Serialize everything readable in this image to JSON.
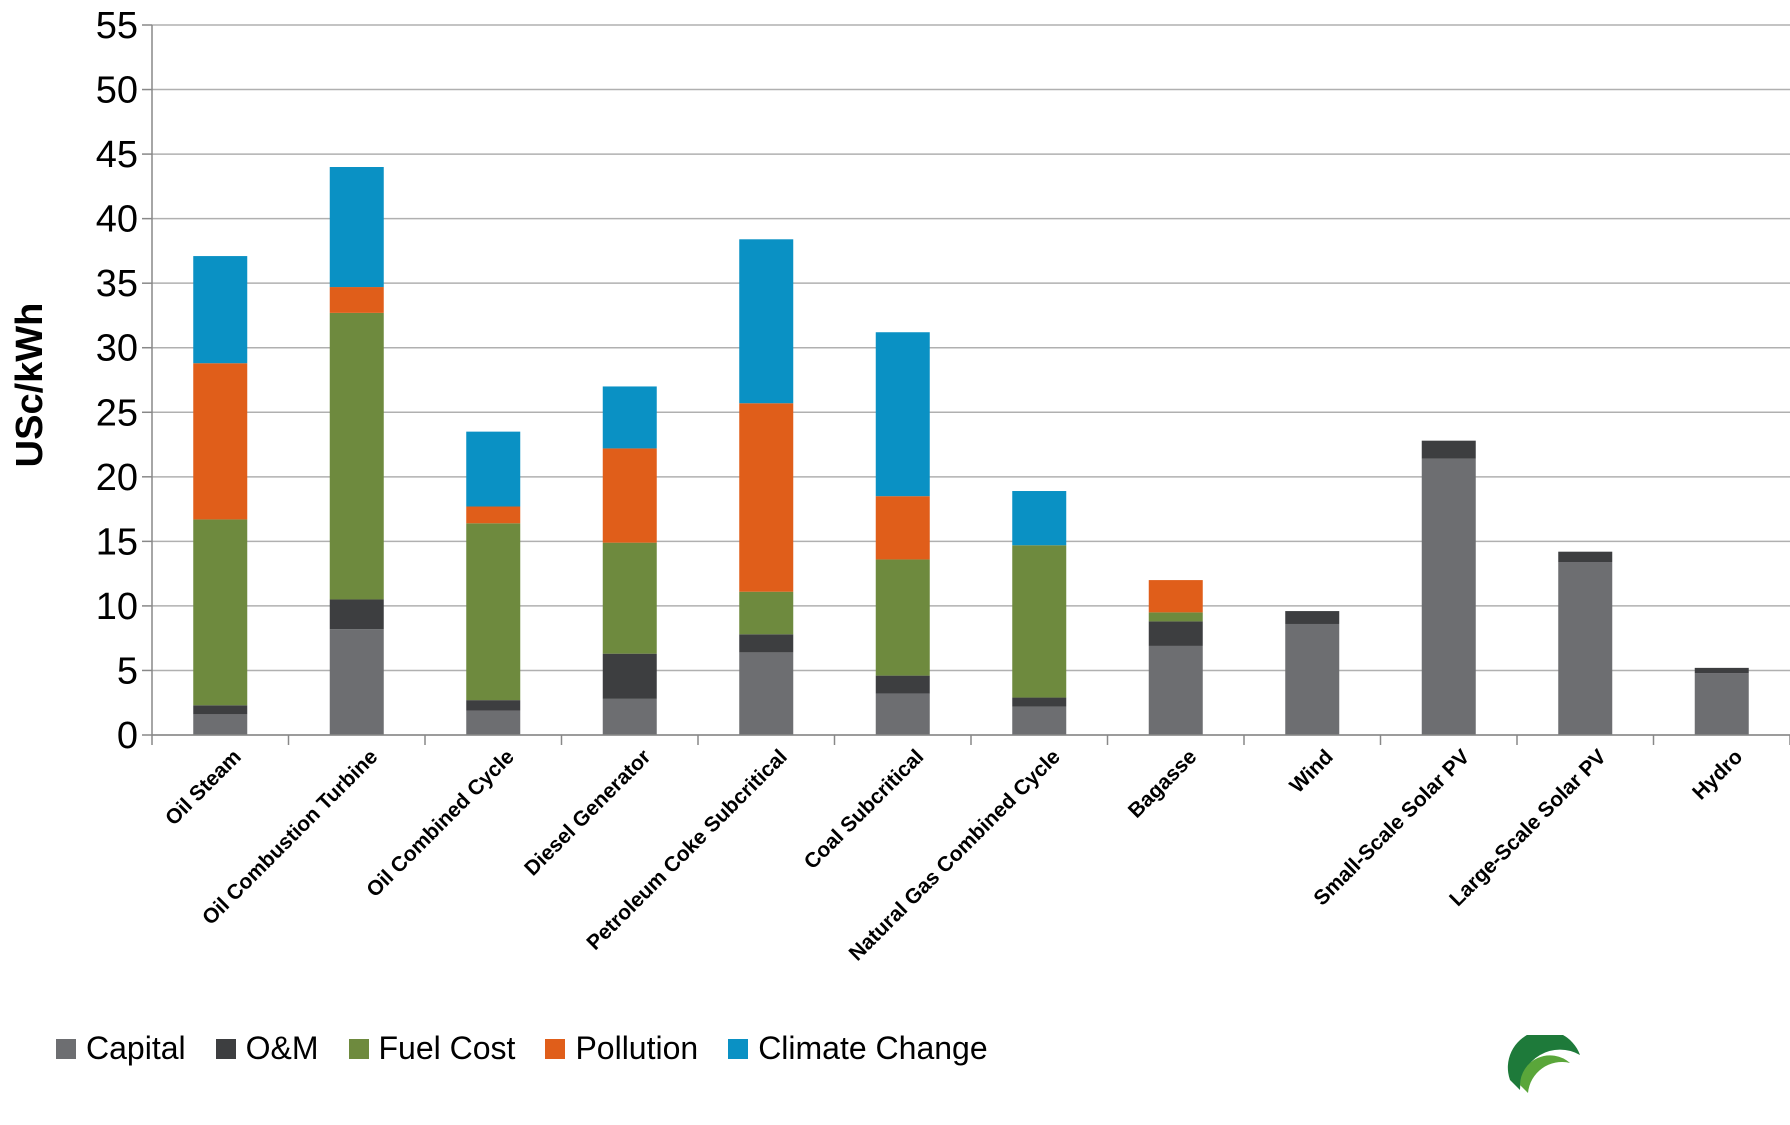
{
  "chart_data": {
    "type": "bar",
    "stacked": true,
    "ylabel": "USc/kWh",
    "ylim": [
      0,
      55
    ],
    "yticks": [
      0,
      5,
      10,
      15,
      20,
      25,
      30,
      35,
      40,
      45,
      50,
      55
    ],
    "grid": true,
    "legend_position": "bottom",
    "categories": [
      "Oil Steam",
      "Oil Combustion Turbine",
      "Oil Combined Cycle",
      "Diesel Generator",
      "Petroleum Coke Subcritical",
      "Coal Subcritical",
      "Natural Gas Combined Cycle",
      "Bagasse",
      "Wind",
      "Small-Scale Solar PV",
      "Large-Scale Solar PV",
      "Hydro"
    ],
    "series": [
      {
        "name": "Capital",
        "color": "#6d6e71",
        "values": [
          1.6,
          8.2,
          1.9,
          2.8,
          6.4,
          3.2,
          2.2,
          6.9,
          8.6,
          21.4,
          13.4,
          4.8
        ]
      },
      {
        "name": "O&M",
        "color": "#3d3e40",
        "values": [
          0.7,
          2.3,
          0.8,
          3.5,
          1.4,
          1.4,
          0.7,
          1.9,
          1.0,
          1.4,
          0.8,
          0.4
        ]
      },
      {
        "name": "Fuel Cost",
        "color": "#6e8a3e",
        "values": [
          14.4,
          22.2,
          13.7,
          8.6,
          3.3,
          9.0,
          11.8,
          0.7,
          0,
          0,
          0,
          0
        ]
      },
      {
        "name": "Pollution",
        "color": "#e05e1a",
        "values": [
          12.1,
          2.0,
          1.3,
          7.3,
          14.6,
          4.9,
          0,
          2.5,
          0,
          0,
          0,
          0
        ]
      },
      {
        "name": "Climate Change",
        "color": "#0a91c4",
        "values": [
          8.3,
          9.3,
          5.8,
          4.8,
          12.7,
          12.7,
          4.2,
          0,
          0,
          0,
          0,
          0
        ]
      }
    ]
  },
  "logo": {
    "name": "logo-icon"
  }
}
